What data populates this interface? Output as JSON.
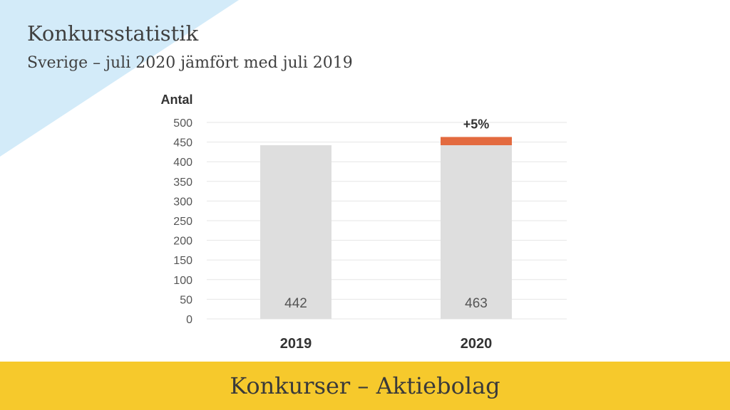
{
  "header": {
    "title": "Konkursstatistik",
    "subtitle": "Sverige – juli 2020 jämfört med juli 2019"
  },
  "footer": {
    "text": "Konkurser – Aktiebolag"
  },
  "colors": {
    "corner": "#d3ebf9",
    "bar": "#dedede",
    "increase": "#e36a3f",
    "footer": "#f6c92c",
    "grid": "#e6e6e6",
    "text": "#404040"
  },
  "chart_data": {
    "type": "bar",
    "ylabel": "Antal",
    "ylim": [
      0,
      500
    ],
    "yticks": [
      0,
      50,
      100,
      150,
      200,
      250,
      300,
      350,
      400,
      450,
      500
    ],
    "grid": true,
    "categories": [
      "2019",
      "2020"
    ],
    "values": [
      442,
      463
    ],
    "value_labels": [
      "442",
      "463"
    ],
    "increase": {
      "category": "2020",
      "from": 442,
      "to": 463,
      "label": "+5%"
    }
  }
}
